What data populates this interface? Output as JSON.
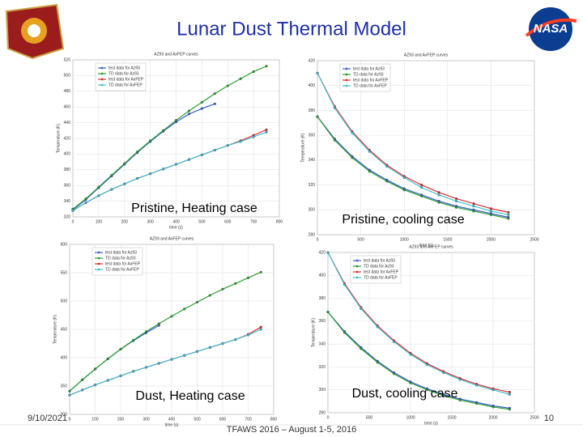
{
  "slide": {
    "title": "Lunar Dust Thermal Model",
    "logo_text": "NASA",
    "captions": [
      "Pristine, Heating case",
      "Pristine, cooling case",
      "Dust, Heating case",
      "Dust, cooling case"
    ],
    "footer": {
      "date": "9/10/2021",
      "event": "TFAWS 2016 – August 1-5, 2016",
      "page": "10"
    }
  },
  "chart_data": [
    {
      "type": "line",
      "title": "AZ93 and AxFEP curves",
      "x_label": "time (s)",
      "y_label": "Temperature (K)",
      "x": [
        0,
        50,
        100,
        150,
        200,
        250,
        300,
        350,
        400,
        450,
        500,
        550,
        600,
        650,
        700,
        750
      ],
      "series": [
        {
          "name": "test data for Az93",
          "color": "#3a5fcd",
          "values": [
            329,
            342,
            357,
            372,
            387,
            402,
            416,
            429,
            441,
            451,
            458,
            464,
            null,
            null,
            null,
            null
          ]
        },
        {
          "name": "TD data for Az93",
          "color": "#2e9e2e",
          "values": [
            330,
            343,
            358,
            373,
            388,
            403,
            417,
            430,
            443,
            455,
            466,
            477,
            487,
            496,
            505,
            512
          ]
        },
        {
          "name": "test data for AxFEP",
          "color": "#e03030",
          "values": [
            328,
            338,
            347,
            355,
            362,
            369,
            375,
            381,
            387,
            393,
            399,
            405,
            411,
            417,
            424,
            431
          ]
        },
        {
          "name": "TD data for AxFEP",
          "color": "#40c0d0",
          "values": [
            328,
            338,
            347,
            355,
            362,
            369,
            375,
            381,
            387,
            393,
            399,
            405,
            411,
            416,
            422,
            428
          ]
        }
      ],
      "xlim": [
        0,
        800
      ],
      "xticks": [
        0,
        100,
        200,
        300,
        400,
        500,
        600,
        700,
        800
      ],
      "ylim": [
        320,
        520
      ],
      "yticks": [
        320,
        340,
        360,
        380,
        400,
        420,
        440,
        460,
        480,
        500,
        520
      ],
      "grid": true,
      "legend": "upper left"
    },
    {
      "type": "line",
      "title": "AZ93 and AxFEP curves",
      "x_label": "time (s)",
      "y_label": "Temperature (K)",
      "x": [
        0,
        200,
        400,
        600,
        800,
        1000,
        1200,
        1400,
        1600,
        1800,
        2000,
        2200
      ],
      "series": [
        {
          "name": "test data for Az93",
          "color": "#3a5fcd",
          "values": [
            375,
            357,
            343,
            332,
            324,
            317,
            312,
            307,
            303,
            300,
            297,
            294
          ]
        },
        {
          "name": "TD data for Az93",
          "color": "#2e9e2e",
          "values": [
            375,
            356,
            342,
            331,
            323,
            316,
            311,
            306,
            302,
            299,
            296,
            293
          ]
        },
        {
          "name": "test data for AxFEP",
          "color": "#e03030",
          "values": [
            410,
            383,
            363,
            348,
            336,
            327,
            320,
            314,
            309,
            305,
            301,
            298
          ]
        },
        {
          "name": "TD data for AxFEP",
          "color": "#40c0d0",
          "values": [
            410,
            382,
            362,
            347,
            335,
            326,
            318,
            312,
            307,
            303,
            299,
            296
          ]
        }
      ],
      "xlim": [
        0,
        2500
      ],
      "xticks": [
        0,
        500,
        1000,
        1500,
        2000,
        2500
      ],
      "ylim": [
        280,
        420
      ],
      "yticks": [
        280,
        300,
        320,
        340,
        360,
        380,
        400,
        420
      ],
      "grid": true,
      "legend": "upper left"
    },
    {
      "type": "line",
      "title": "AZ93 and AxFEP curves",
      "x_label": "time (s)",
      "y_label": "Temperature (K)",
      "x": [
        0,
        50,
        100,
        150,
        200,
        250,
        300,
        350,
        400,
        450,
        500,
        550,
        600,
        650,
        700,
        750
      ],
      "series": [
        {
          "name": "test data for Az93",
          "color": "#3a5fcd",
          "values": [
            341,
            361,
            380,
            398,
            415,
            430,
            444,
            457,
            null,
            null,
            null,
            null,
            null,
            null,
            null,
            null
          ]
        },
        {
          "name": "TD data for Az93",
          "color": "#2e9e2e",
          "values": [
            341,
            361,
            380,
            398,
            415,
            431,
            446,
            460,
            473,
            486,
            498,
            510,
            521,
            531,
            541,
            551
          ]
        },
        {
          "name": "test data for AxFEP",
          "color": "#e03030",
          "values": [
            334,
            343,
            352,
            360,
            368,
            376,
            383,
            390,
            397,
            404,
            411,
            418,
            425,
            432,
            441,
            454
          ]
        },
        {
          "name": "TD data for AxFEP",
          "color": "#40c0d0",
          "values": [
            334,
            343,
            352,
            360,
            368,
            376,
            383,
            390,
            397,
            404,
            411,
            418,
            425,
            432,
            440,
            450
          ]
        }
      ],
      "xlim": [
        0,
        800
      ],
      "xticks": [
        0,
        100,
        200,
        300,
        400,
        500,
        600,
        700,
        800
      ],
      "ylim": [
        300,
        600
      ],
      "yticks": [
        300,
        350,
        400,
        450,
        500,
        550,
        600
      ],
      "grid": true,
      "legend": "upper left"
    },
    {
      "type": "line",
      "title": "AZ93 and AxFEP curves",
      "x_label": "time (s)",
      "y_label": "Temperature (K)",
      "x": [
        0,
        200,
        400,
        600,
        800,
        1000,
        1200,
        1400,
        1600,
        1800,
        2000,
        2200
      ],
      "series": [
        {
          "name": "test data for Az93",
          "color": "#3a5fcd",
          "values": [
            368,
            351,
            337,
            325,
            315,
            307,
            301,
            296,
            292,
            289,
            286,
            284
          ]
        },
        {
          "name": "TD data for Az93",
          "color": "#2e9e2e",
          "values": [
            368,
            350,
            336,
            324,
            314,
            306,
            300,
            295,
            291,
            288,
            285,
            283
          ]
        },
        {
          "name": "test data for AxFEP",
          "color": "#e03030",
          "values": [
            420,
            393,
            372,
            356,
            343,
            332,
            323,
            316,
            310,
            305,
            301,
            298
          ]
        },
        {
          "name": "TD data for AxFEP",
          "color": "#40c0d0",
          "values": [
            420,
            392,
            371,
            355,
            342,
            331,
            322,
            315,
            309,
            304,
            300,
            296
          ]
        }
      ],
      "xlim": [
        0,
        2500
      ],
      "xticks": [
        0,
        500,
        1000,
        1500,
        2000,
        2500
      ],
      "ylim": [
        280,
        420
      ],
      "yticks": [
        280,
        300,
        320,
        340,
        360,
        380,
        400,
        420
      ],
      "grid": true,
      "legend": "upper left"
    }
  ]
}
